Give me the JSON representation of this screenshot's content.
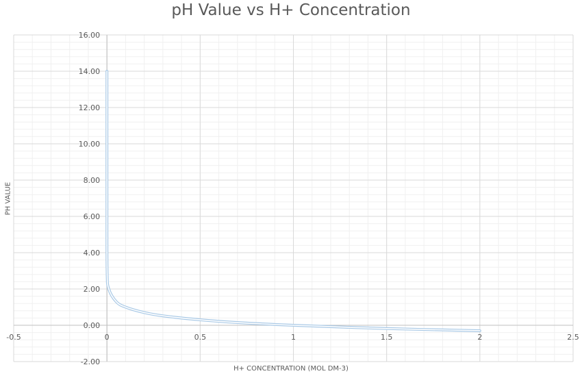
{
  "chart_data": {
    "type": "scatter",
    "title": "pH Value vs H+ Concentration",
    "xlabel": "H+ CONCENTRATION (MOL DM-3)",
    "ylabel": "PH VALUE",
    "xlim": [
      -0.5,
      2.5
    ],
    "ylim": [
      -2,
      16
    ],
    "x_ticks": [
      -0.5,
      0,
      0.5,
      1,
      1.5,
      2,
      2.5
    ],
    "x_tick_labels": [
      "-0.5",
      "0",
      "0.5",
      "1",
      "1.5",
      "2",
      "2.5"
    ],
    "y_ticks": [
      -2,
      0,
      2,
      4,
      6,
      8,
      10,
      12,
      14,
      16
    ],
    "y_tick_labels": [
      "-2.00",
      "0.00",
      "2.00",
      "4.00",
      "6.00",
      "8.00",
      "10.00",
      "12.00",
      "14.00",
      "16.00"
    ],
    "grid": true,
    "minor_grid": true,
    "series": [
      {
        "color": "#a9c9e6",
        "smooth": true,
        "x": [
          1e-14,
          1e-07,
          0.001,
          0.01,
          0.05,
          0.1,
          0.2,
          0.3,
          0.5,
          0.7,
          1,
          1.5,
          2
        ],
        "y": [
          14,
          7,
          3,
          2,
          1.3,
          1,
          0.7,
          0.52,
          0.3,
          0.15,
          0,
          -0.18,
          -0.3
        ]
      }
    ]
  }
}
